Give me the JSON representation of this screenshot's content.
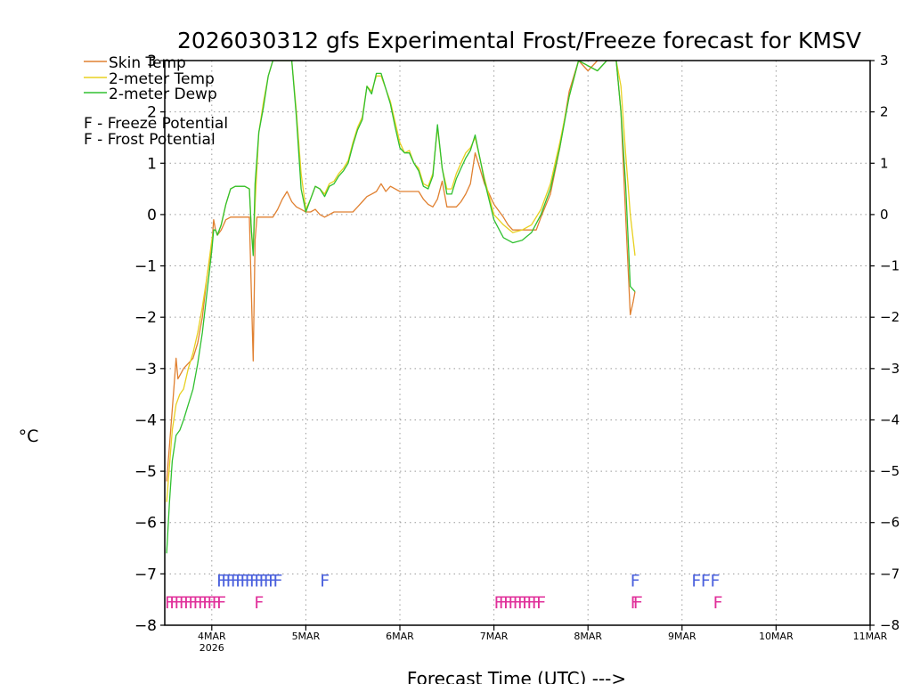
{
  "chart_data": {
    "type": "line",
    "title": "2026030312 gfs Experimental Frost/Freeze forecast for KMSV",
    "ylabel": "°C",
    "xlabel": "Forecast Time (UTC) --->",
    "ylim": [
      -8,
      3
    ],
    "xlim": [
      3.5,
      11.0
    ],
    "yticks": [
      -8,
      -7,
      -6,
      -5,
      -4,
      -3,
      -2,
      -1,
      0,
      1,
      2,
      3
    ],
    "ytick_labels": [
      "−8",
      "−7",
      "−6",
      "−5",
      "−4",
      "−3",
      "−2",
      "−1",
      "0",
      "1",
      "2",
      "3"
    ],
    "xticks": [
      {
        "day": 4,
        "label": "4MAR",
        "sublabel": "2026"
      },
      {
        "day": 5,
        "label": "5MAR",
        "sublabel": ""
      },
      {
        "day": 6,
        "label": "6MAR",
        "sublabel": ""
      },
      {
        "day": 7,
        "label": "7MAR",
        "sublabel": ""
      },
      {
        "day": 8,
        "label": "8MAR",
        "sublabel": ""
      },
      {
        "day": 9,
        "label": "9MAR",
        "sublabel": ""
      },
      {
        "day": 10,
        "label": "10MAR",
        "sublabel": ""
      },
      {
        "day": 11,
        "label": "11MAR",
        "sublabel": ""
      }
    ],
    "grid": true,
    "legend": {
      "placement": "top-left",
      "entries": [
        {
          "label": "Skin Temp",
          "color": "#e08030"
        },
        {
          "label": "2-meter Temp",
          "color": "#e8d020"
        },
        {
          "label": "2-meter Dewp",
          "color": "#30c030"
        }
      ],
      "potential_entries": [
        {
          "label": "F - Freeze Potential",
          "color": "#e0309a"
        },
        {
          "label": "F - Frost Potential",
          "color": "#4a60dd"
        }
      ]
    },
    "series": [
      {
        "name": "Skin Temp",
        "color": "#e08030",
        "x": [
          3.52,
          3.55,
          3.58,
          3.6,
          3.62,
          3.64,
          3.67,
          3.7,
          3.75,
          3.8,
          3.85,
          3.9,
          3.95,
          4.0,
          4.02,
          4.04,
          4.06,
          4.1,
          4.15,
          4.2,
          4.3,
          4.4,
          4.42,
          4.44,
          4.46,
          4.48,
          4.5,
          4.55,
          4.6,
          4.65,
          4.7,
          4.75,
          4.8,
          4.85,
          4.9,
          4.95,
          5.0,
          5.05,
          5.1,
          5.15,
          5.2,
          5.3,
          5.4,
          5.5,
          5.55,
          5.6,
          5.65,
          5.7,
          5.75,
          5.8,
          5.85,
          5.9,
          6.0,
          6.1,
          6.15,
          6.2,
          6.25,
          6.3,
          6.35,
          6.4,
          6.45,
          6.5,
          6.55,
          6.6,
          6.65,
          6.7,
          6.75,
          6.8,
          6.85,
          6.9,
          7.0,
          7.1,
          7.15,
          7.2,
          7.3,
          7.4,
          7.45,
          7.5,
          7.6,
          7.7,
          7.8,
          7.9,
          8.0,
          8.1,
          8.2,
          8.3,
          8.35,
          8.4,
          8.45,
          8.48,
          8.5
        ],
        "y": [
          -5.2,
          -4.5,
          -3.8,
          -3.3,
          -2.8,
          -3.2,
          -3.1,
          -3.0,
          -2.9,
          -2.8,
          -2.5,
          -2.0,
          -1.2,
          -0.6,
          -0.1,
          -0.3,
          -0.4,
          -0.3,
          -0.1,
          -0.05,
          -0.05,
          -0.05,
          -1.5,
          -2.85,
          -0.5,
          -0.05,
          -0.05,
          -0.05,
          -0.05,
          -0.05,
          0.1,
          0.3,
          0.45,
          0.25,
          0.15,
          0.1,
          0.05,
          0.05,
          0.1,
          0.0,
          -0.05,
          0.05,
          0.05,
          0.05,
          0.15,
          0.25,
          0.35,
          0.4,
          0.45,
          0.6,
          0.45,
          0.55,
          0.45,
          0.45,
          0.45,
          0.45,
          0.3,
          0.2,
          0.15,
          0.3,
          0.65,
          0.15,
          0.15,
          0.15,
          0.25,
          0.4,
          0.6,
          1.2,
          0.9,
          0.6,
          0.2,
          -0.05,
          -0.2,
          -0.3,
          -0.3,
          -0.3,
          -0.3,
          -0.05,
          0.4,
          1.3,
          2.4,
          3.0,
          2.8,
          3.0,
          3.0,
          3.0,
          2.0,
          0.0,
          -1.95,
          -1.7,
          -1.5
        ]
      },
      {
        "name": "2-meter Temp",
        "color": "#e8d020",
        "x": [
          3.52,
          3.55,
          3.58,
          3.62,
          3.66,
          3.7,
          3.75,
          3.8,
          3.85,
          3.9,
          3.95,
          4.0,
          4.02,
          4.04,
          4.06,
          4.1,
          4.15,
          4.2,
          4.25,
          4.3,
          4.35,
          4.4,
          4.42,
          4.44,
          4.46,
          4.5,
          4.55,
          4.6,
          4.65,
          4.7,
          4.75,
          4.8,
          4.85,
          4.9,
          4.95,
          5.0,
          5.05,
          5.1,
          5.15,
          5.2,
          5.25,
          5.3,
          5.35,
          5.4,
          5.45,
          5.5,
          5.55,
          5.6,
          5.65,
          5.7,
          5.75,
          5.8,
          5.85,
          5.9,
          5.95,
          6.0,
          6.05,
          6.1,
          6.15,
          6.2,
          6.25,
          6.3,
          6.35,
          6.4,
          6.45,
          6.5,
          6.55,
          6.6,
          6.65,
          6.7,
          6.75,
          6.8,
          6.85,
          6.9,
          7.0,
          7.1,
          7.2,
          7.3,
          7.4,
          7.5,
          7.6,
          7.7,
          7.8,
          7.9,
          8.0,
          8.1,
          8.2,
          8.3,
          8.35,
          8.4,
          8.45,
          8.5
        ],
        "y": [
          -5.6,
          -4.9,
          -4.2,
          -3.7,
          -3.5,
          -3.4,
          -3.0,
          -2.7,
          -2.3,
          -1.8,
          -1.2,
          -0.5,
          -0.3,
          -0.3,
          -0.4,
          -0.2,
          0.2,
          0.5,
          0.55,
          0.55,
          0.55,
          0.5,
          -0.3,
          -0.7,
          0.2,
          1.6,
          2.2,
          2.7,
          3.0,
          3.0,
          3.0,
          3.0,
          3.0,
          2.0,
          0.8,
          0.1,
          0.3,
          0.55,
          0.5,
          0.4,
          0.6,
          0.65,
          0.8,
          0.9,
          1.05,
          1.4,
          1.7,
          1.9,
          2.5,
          2.4,
          2.7,
          2.7,
          2.45,
          2.2,
          1.8,
          1.4,
          1.2,
          1.25,
          1.0,
          0.9,
          0.6,
          0.55,
          0.8,
          1.7,
          0.9,
          0.5,
          0.5,
          0.8,
          1.0,
          1.2,
          1.3,
          1.5,
          1.1,
          0.7,
          0.0,
          -0.2,
          -0.35,
          -0.3,
          -0.2,
          0.1,
          0.6,
          1.4,
          2.3,
          3.0,
          2.9,
          2.8,
          3.0,
          3.0,
          2.5,
          1.2,
          0.0,
          -0.8
        ]
      },
      {
        "name": "2-meter Dewp",
        "color": "#30c030",
        "x": [
          3.52,
          3.55,
          3.58,
          3.62,
          3.66,
          3.7,
          3.75,
          3.8,
          3.85,
          3.9,
          3.95,
          4.0,
          4.02,
          4.04,
          4.06,
          4.1,
          4.15,
          4.2,
          4.25,
          4.3,
          4.35,
          4.4,
          4.42,
          4.44,
          4.46,
          4.5,
          4.55,
          4.6,
          4.65,
          4.7,
          4.75,
          4.8,
          4.85,
          4.9,
          4.95,
          5.0,
          5.05,
          5.1,
          5.15,
          5.2,
          5.25,
          5.3,
          5.35,
          5.4,
          5.45,
          5.5,
          5.55,
          5.6,
          5.65,
          5.7,
          5.75,
          5.8,
          5.85,
          5.9,
          5.95,
          6.0,
          6.05,
          6.1,
          6.15,
          6.2,
          6.25,
          6.3,
          6.35,
          6.4,
          6.45,
          6.5,
          6.55,
          6.6,
          6.65,
          6.7,
          6.75,
          6.8,
          6.85,
          6.9,
          7.0,
          7.1,
          7.2,
          7.3,
          7.4,
          7.5,
          7.6,
          7.7,
          7.8,
          7.9,
          8.0,
          8.1,
          8.2,
          8.3,
          8.35,
          8.4,
          8.45,
          8.5
        ],
        "y": [
          -6.6,
          -5.6,
          -4.8,
          -4.3,
          -4.2,
          -4.0,
          -3.7,
          -3.4,
          -2.9,
          -2.3,
          -1.5,
          -0.7,
          -0.3,
          -0.3,
          -0.4,
          -0.2,
          0.2,
          0.5,
          0.55,
          0.55,
          0.55,
          0.5,
          -0.3,
          -0.8,
          0.6,
          1.6,
          2.1,
          2.7,
          3.0,
          3.0,
          3.0,
          3.0,
          3.0,
          1.9,
          0.5,
          0.05,
          0.3,
          0.55,
          0.5,
          0.35,
          0.55,
          0.6,
          0.75,
          0.85,
          1.0,
          1.35,
          1.65,
          1.85,
          2.5,
          2.35,
          2.75,
          2.75,
          2.45,
          2.15,
          1.7,
          1.3,
          1.2,
          1.2,
          1.0,
          0.85,
          0.55,
          0.5,
          0.75,
          1.75,
          0.9,
          0.4,
          0.4,
          0.7,
          0.9,
          1.1,
          1.25,
          1.55,
          1.1,
          0.65,
          -0.1,
          -0.45,
          -0.55,
          -0.5,
          -0.35,
          0.0,
          0.5,
          1.3,
          2.3,
          3.0,
          2.9,
          2.8,
          3.0,
          3.0,
          2.0,
          0.6,
          -1.4,
          -1.5
        ]
      }
    ],
    "freeze_markers": {
      "label": "F",
      "color": "#e0309a",
      "y_level": -7.55,
      "x": [
        3.5,
        3.55,
        3.6,
        3.65,
        3.7,
        3.75,
        3.8,
        3.85,
        3.9,
        3.95,
        4.0,
        4.05,
        4.45,
        7.0,
        7.05,
        7.1,
        7.15,
        7.2,
        7.25,
        7.3,
        7.35,
        7.4,
        7.45,
        8.45,
        8.48,
        9.33
      ]
    },
    "frost_markers": {
      "label": "F",
      "color": "#4a60dd",
      "y_level": -7.12,
      "x": [
        4.05,
        4.1,
        4.15,
        4.2,
        4.25,
        4.3,
        4.35,
        4.4,
        4.45,
        4.5,
        4.55,
        4.6,
        4.65,
        5.15,
        8.45,
        9.1,
        9.2,
        9.3
      ]
    }
  }
}
